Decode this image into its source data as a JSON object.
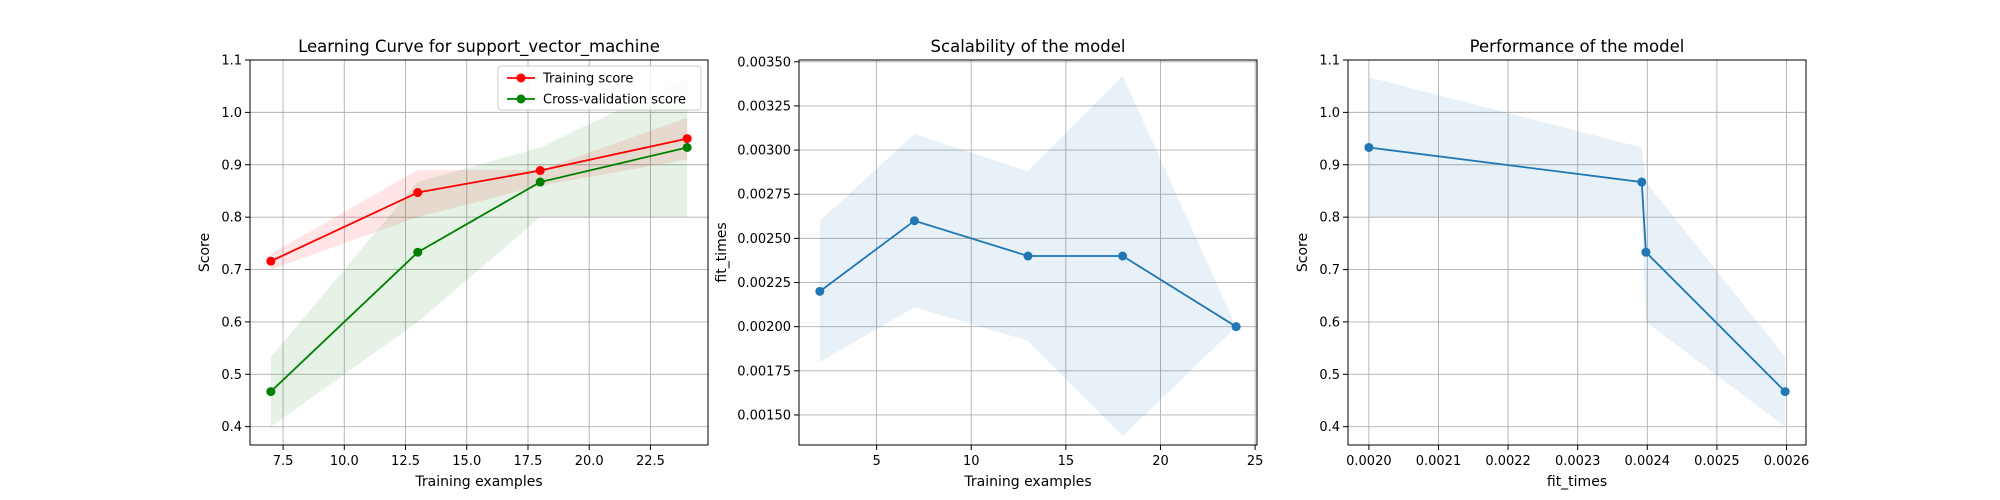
{
  "figure": {
    "background": "#ffffff",
    "colors": {
      "training": "#ff0000",
      "cv": "#008000",
      "blue": "#1f77b4",
      "band_blue": "#1f77b4",
      "grid": "#b0b0b0"
    }
  },
  "chart_data": [
    {
      "type": "line",
      "title": "Learning Curve for support_vector_machine",
      "xlabel": "Training examples",
      "ylabel": "Score",
      "xlim": [
        6.15,
        24.85
      ],
      "ylim": [
        0.365,
        1.1
      ],
      "xticks": [
        7.5,
        10.0,
        12.5,
        15.0,
        17.5,
        20.0,
        22.5
      ],
      "xtick_labels": [
        "7.5",
        "10.0",
        "12.5",
        "15.0",
        "17.5",
        "20.0",
        "22.5"
      ],
      "yticks": [
        0.4,
        0.5,
        0.6,
        0.7,
        0.8,
        0.9,
        1.0,
        1.1
      ],
      "ytick_labels": [
        "0.4",
        "0.5",
        "0.6",
        "0.7",
        "0.8",
        "0.9",
        "1.0",
        "1.1"
      ],
      "grid": true,
      "legend_position": "top-right",
      "x": [
        7,
        13,
        18,
        24
      ],
      "series": [
        {
          "name": "Training score",
          "color": "#ff0000",
          "values": [
            0.716,
            0.847,
            0.889,
            0.95
          ],
          "band_lower": [
            0.7,
            0.8,
            0.86,
            0.91
          ],
          "band_upper": [
            0.73,
            0.89,
            0.89,
            0.99
          ]
        },
        {
          "name": "Cross-validation score",
          "color": "#008000",
          "values": [
            0.467,
            0.733,
            0.867,
            0.933
          ],
          "band_lower": [
            0.4,
            0.6,
            0.8,
            0.8
          ],
          "band_upper": [
            0.533,
            0.867,
            0.933,
            1.067
          ]
        }
      ]
    },
    {
      "type": "line",
      "title": "Scalability of the model",
      "xlabel": "Training examples",
      "ylabel": "fit_times",
      "xlim": [
        0.9,
        25.1
      ],
      "ylim": [
        0.00133,
        0.00351
      ],
      "xticks": [
        5,
        10,
        15,
        20,
        25
      ],
      "xtick_labels": [
        "5",
        "10",
        "15",
        "20",
        "25"
      ],
      "yticks": [
        0.0015,
        0.00175,
        0.002,
        0.00225,
        0.0025,
        0.00275,
        0.003,
        0.00325,
        0.0035
      ],
      "ytick_labels": [
        "0.00150",
        "0.00175",
        "0.00200",
        "0.00225",
        "0.00250",
        "0.00275",
        "0.00300",
        "0.00325",
        "0.00350"
      ],
      "grid": true,
      "x": [
        2,
        7,
        13,
        18,
        24
      ],
      "series": [
        {
          "color": "#1f77b4",
          "values": [
            0.0022,
            0.0026,
            0.0024,
            0.0024,
            0.002
          ],
          "band_lower": [
            0.0018,
            0.00211,
            0.00192,
            0.00138,
            0.002
          ],
          "band_upper": [
            0.0026,
            0.00309,
            0.00288,
            0.00342,
            0.002
          ]
        }
      ]
    },
    {
      "type": "line",
      "title": "Performance of the model",
      "xlabel": "fit_times",
      "ylabel": "Score",
      "xlim": [
        0.00197,
        0.002628
      ],
      "ylim": [
        0.365,
        1.1
      ],
      "xticks": [
        0.002,
        0.0021,
        0.0022,
        0.0023,
        0.0024,
        0.0025,
        0.0026
      ],
      "xtick_labels": [
        "0.0020",
        "0.0021",
        "0.0022",
        "0.0023",
        "0.0024",
        "0.0025",
        "0.0026"
      ],
      "yticks": [
        0.4,
        0.5,
        0.6,
        0.7,
        0.8,
        0.9,
        1.0,
        1.1
      ],
      "ytick_labels": [
        "0.4",
        "0.5",
        "0.6",
        "0.7",
        "0.8",
        "0.9",
        "1.0",
        "1.1"
      ],
      "grid": true,
      "x": [
        0.002,
        0.002392,
        0.002398,
        0.002598
      ],
      "series": [
        {
          "color": "#1f77b4",
          "values": [
            0.933,
            0.867,
            0.733,
            0.467
          ],
          "band_lower": [
            0.8,
            0.8,
            0.6,
            0.4
          ],
          "band_upper": [
            1.067,
            0.933,
            0.867,
            0.533
          ]
        }
      ]
    }
  ]
}
